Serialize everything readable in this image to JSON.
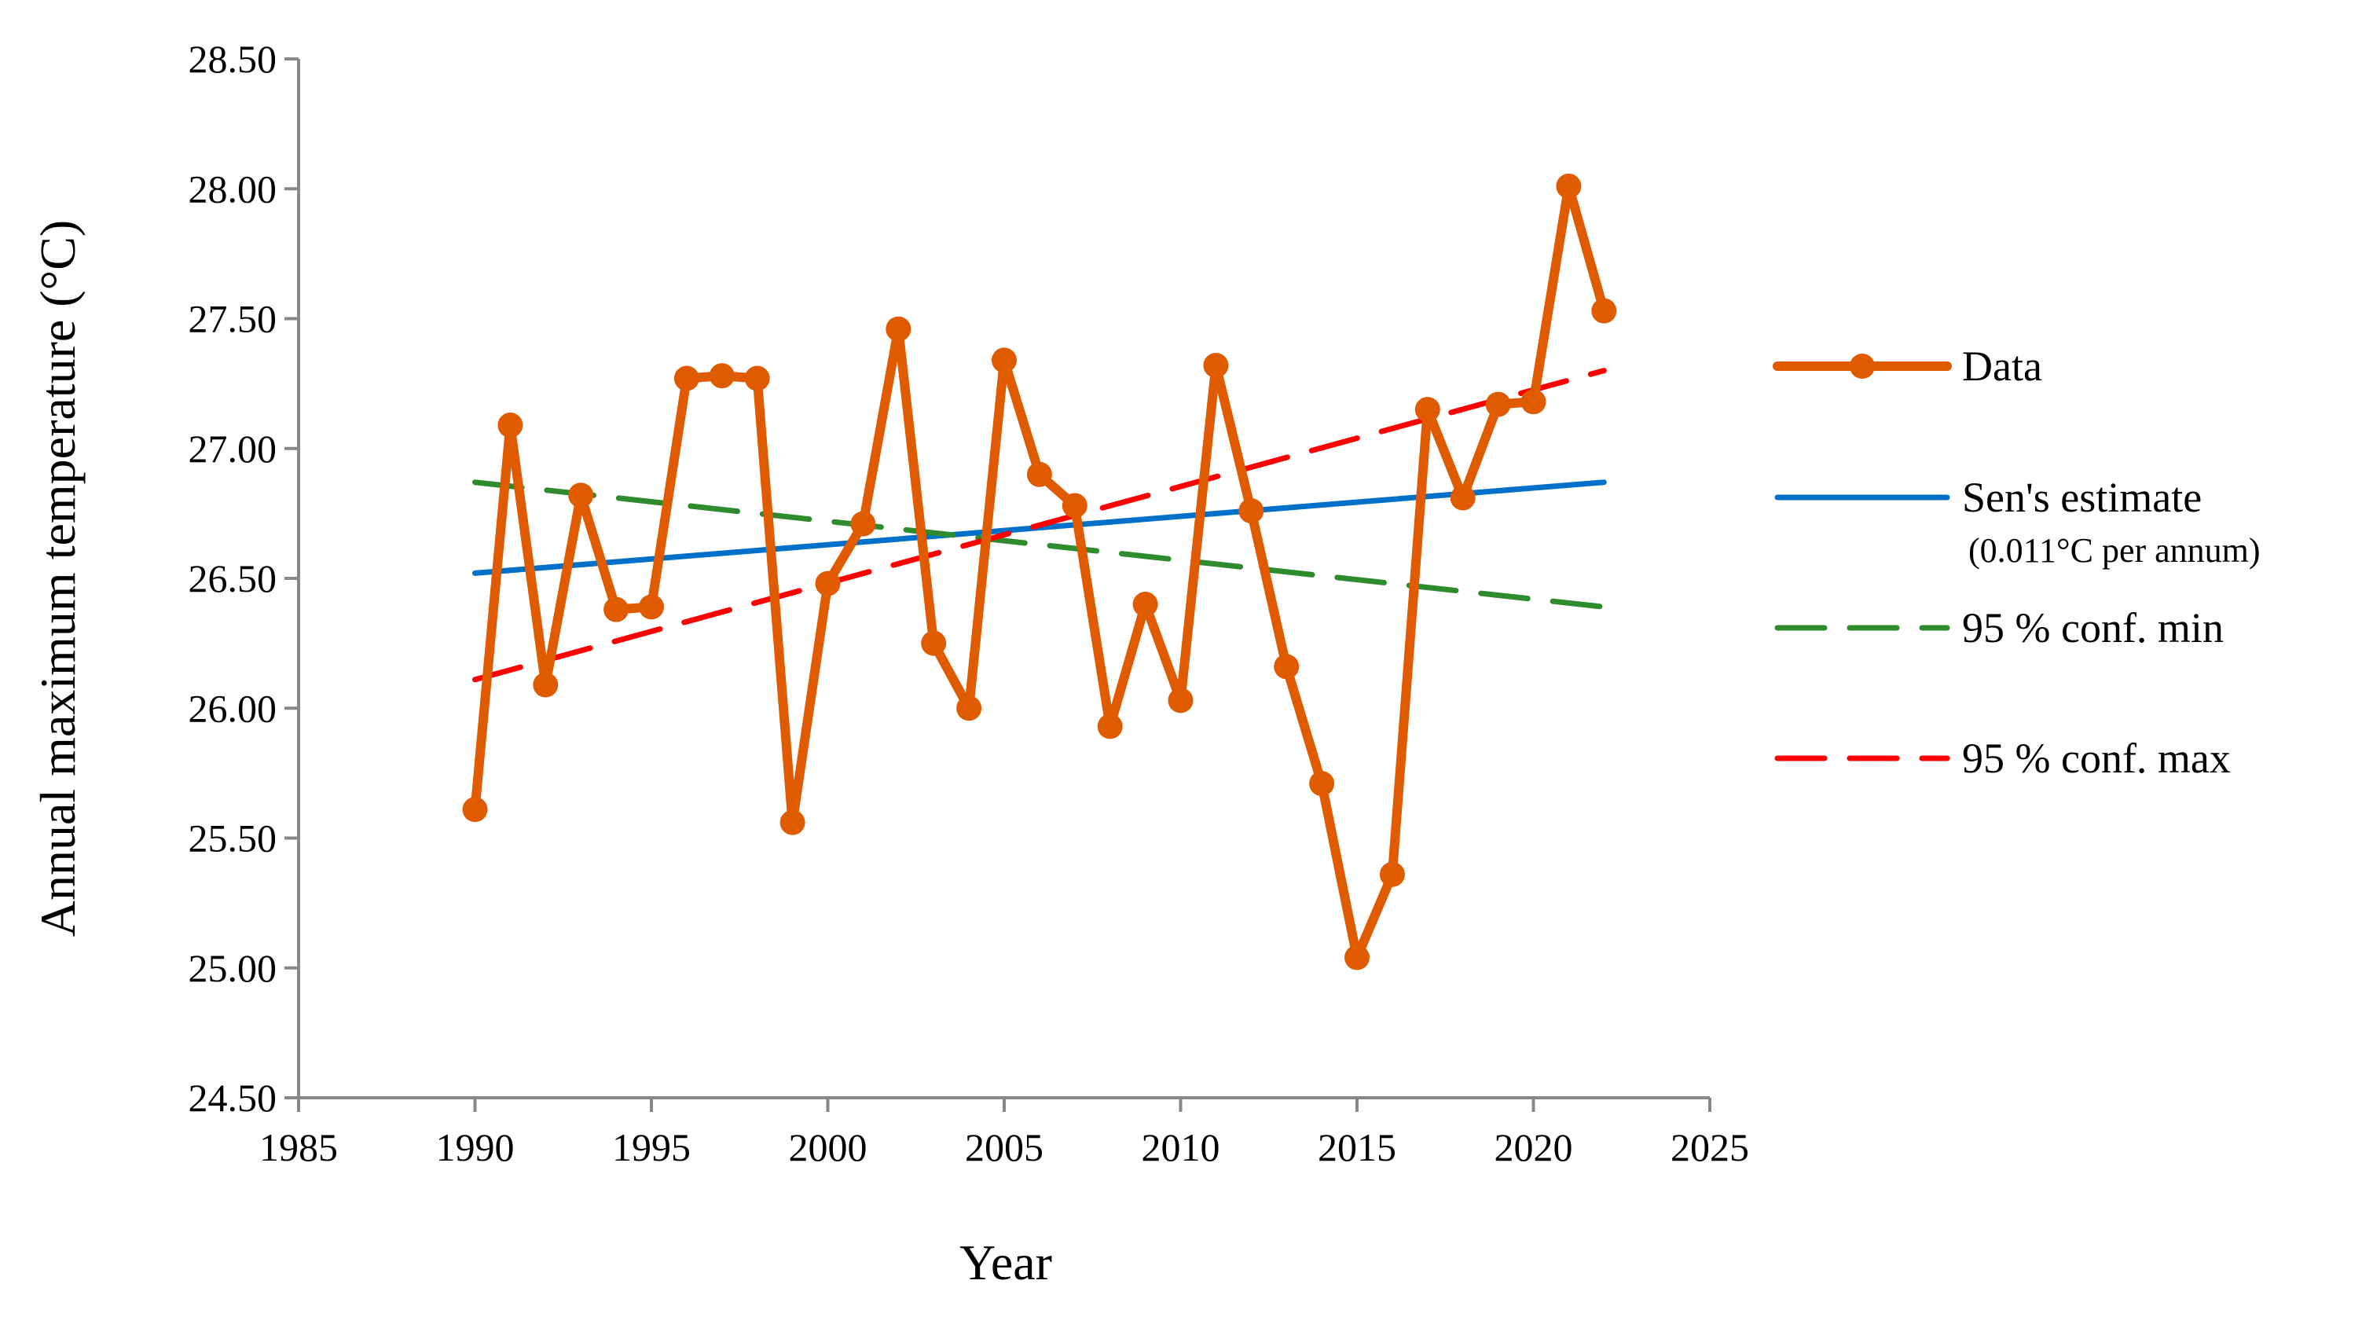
{
  "chart_data": {
    "type": "line",
    "title": "",
    "xlabel": "Year",
    "ylabel": "Annual maximum temperature (°C)",
    "xlim": [
      1985,
      2025
    ],
    "ylim": [
      24.5,
      28.5
    ],
    "xticks": [
      "1985",
      "1990",
      "1995",
      "2000",
      "2005",
      "2010",
      "2015",
      "2020",
      "2025"
    ],
    "yticks": [
      "24.50",
      "25.00",
      "25.50",
      "26.00",
      "26.50",
      "27.00",
      "27.50",
      "28.00",
      "28.50"
    ],
    "grid": false,
    "legend_position": "right",
    "x": [
      1990,
      1991,
      1992,
      1993,
      1994,
      1995,
      1996,
      1997,
      1998,
      1999,
      2000,
      2001,
      2002,
      2003,
      2004,
      2005,
      2006,
      2007,
      2008,
      2009,
      2010,
      2011,
      2012,
      2013,
      2014,
      2015,
      2016,
      2017,
      2018,
      2019,
      2020,
      2021,
      2022
    ],
    "series": [
      {
        "name": "Data",
        "style": "solid-markers",
        "color": "#E05A00",
        "values": [
          25.61,
          27.09,
          26.09,
          26.82,
          26.38,
          26.39,
          27.27,
          27.28,
          27.27,
          25.56,
          26.48,
          26.71,
          27.46,
          26.25,
          26.0,
          27.34,
          26.9,
          26.78,
          25.93,
          26.4,
          26.03,
          27.32,
          26.76,
          26.16,
          25.71,
          25.04,
          25.36,
          27.15,
          26.81,
          27.17,
          27.18,
          28.01,
          27.53
        ]
      },
      {
        "name": "Sen's estimate",
        "note": "(0.011°C per annum)",
        "style": "solid",
        "color": "#0070C8",
        "x": [
          1990,
          2022
        ],
        "values": [
          26.52,
          26.87
        ]
      },
      {
        "name": "95 % conf. min",
        "style": "dashed",
        "color": "#2E8B2E",
        "x": [
          1990,
          2022
        ],
        "values": [
          26.87,
          26.39
        ]
      },
      {
        "name": "95 % conf. max",
        "style": "dashed",
        "color": "#FF0000",
        "x": [
          1990,
          2022
        ],
        "values": [
          26.11,
          27.3
        ]
      }
    ]
  }
}
